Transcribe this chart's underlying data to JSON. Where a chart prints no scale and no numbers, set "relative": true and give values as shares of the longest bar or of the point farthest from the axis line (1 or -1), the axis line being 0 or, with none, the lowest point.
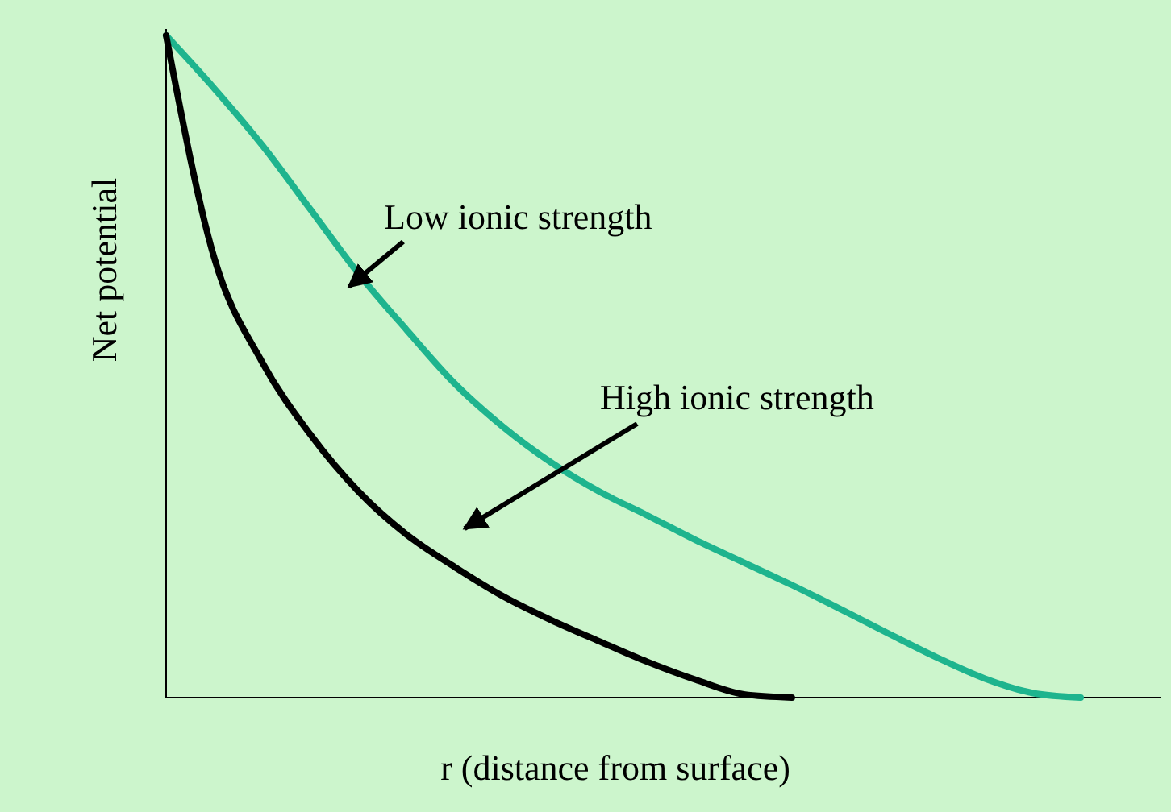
{
  "chart_data": {
    "type": "line",
    "relative": true,
    "xlabel": "r (distance from surface)",
    "ylabel": "Net potential",
    "categories": [
      null,
      null,
      null,
      null,
      null,
      null,
      null,
      null,
      null,
      null,
      null,
      null,
      null,
      null,
      null,
      null,
      null,
      null,
      null,
      null
    ],
    "series": [
      {
        "color": "#1eb48e",
        "values": [
          1,
          0.92,
          0.834,
          0.737,
          0.64,
          0.555,
          0.474,
          0.409,
          0.355,
          0.311,
          0.275,
          0.238,
          0.204,
          0.17,
          0.134,
          0.097,
          0.061,
          0.029,
          0.007,
          0
        ]
      },
      {
        "color": "#000000",
        "values": [
          1,
          0.664,
          0.506,
          0.397,
          0.311,
          0.246,
          0.197,
          0.153,
          0.117,
          0.085,
          0.054,
          0.027,
          0.005,
          0,
          null,
          null,
          null,
          null,
          null,
          null
        ]
      }
    ],
    "annotations": [
      "Low ionic strength",
      "High ionic strength"
    ],
    "marker": "none",
    "line_style": "solid"
  }
}
